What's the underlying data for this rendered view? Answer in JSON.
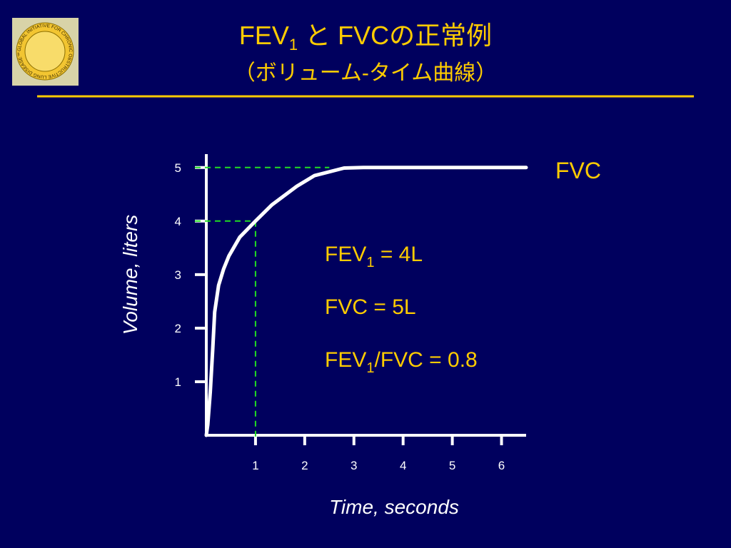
{
  "logo_text": "GLOBAL INITIATIVE FOR CHRONIC OBSTRUCTIVE LUNG DISEASE™",
  "chart_data": {
    "type": "line",
    "title": [
      "FEV",
      "1",
      " と FVCの正常例"
    ],
    "subtitle": "（ボリューム-タイム曲線）",
    "xlabel": "Time, seconds",
    "ylabel": "Volume, liters",
    "x": [
      0,
      0.03,
      0.08,
      0.13,
      0.17,
      0.25,
      0.35,
      0.46,
      0.68,
      1,
      1.33,
      1.84,
      2.2,
      2.8,
      3.2,
      6.5
    ],
    "series": [
      {
        "name": "FVC",
        "color": "#ffffff",
        "values": [
          0,
          0.2,
          0.8,
          1.6,
          2.3,
          2.8,
          3.1,
          3.35,
          3.7,
          4,
          4.3,
          4.65,
          4.85,
          4.99,
          5,
          5
        ]
      }
    ],
    "xlim": [
      0,
      6.5
    ],
    "ylim": [
      0,
      5.25
    ],
    "xticks": [
      1,
      2,
      3,
      4,
      5,
      6
    ],
    "yticks": [
      1,
      2,
      3,
      4,
      5
    ],
    "guides": [
      {
        "x": 1,
        "y": 4,
        "vertical": true
      },
      {
        "x": 2.5,
        "y": 5,
        "vertical": false
      }
    ],
    "guide_color": "#22dd22",
    "annotations": [
      [
        "FEV",
        "1",
        " = 4L"
      ],
      [
        "FVC  = 5L"
      ],
      [
        "FEV",
        "1",
        "/FVC = 0.8"
      ]
    ]
  }
}
